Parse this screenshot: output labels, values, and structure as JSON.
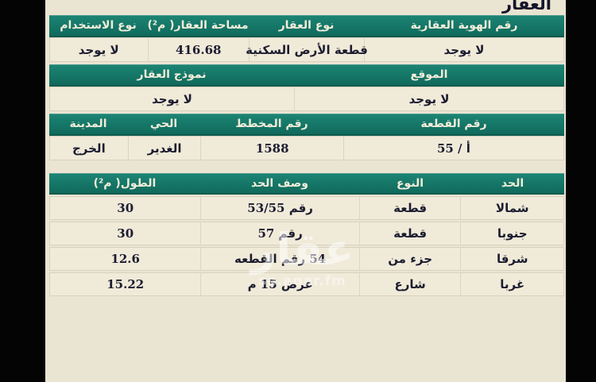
{
  "page_title": "العقار",
  "colors": {
    "accent_teal": "#157667",
    "background": "#eae4d2",
    "cell": "#f0ead9"
  },
  "watermark": {
    "logo": "عقار",
    "site": "sa.aqar.fm"
  },
  "property_table": {
    "headers": {
      "id": "رقم الهوية العقارية",
      "type": "نوع العقار",
      "area": "مساحة العقار( م²)",
      "usage": "نوع الاستخدام"
    },
    "values": {
      "id": "لا يوجد",
      "type": "قطعة الأرض السكنية",
      "area": "416.68",
      "usage": "لا يوجد"
    }
  },
  "location_table": {
    "headers": {
      "location": "الموقع",
      "model": "نموذج العقار"
    },
    "values": {
      "location": "لا يوجد",
      "model": "لا يوجد"
    }
  },
  "plot_table": {
    "headers": {
      "plot_no": "رقم القطعة",
      "plan_no": "رقم المخطط",
      "district": "الحي",
      "city": "المدينة"
    },
    "values": {
      "plot_no": "أ / 55",
      "plan_no": "1588",
      "district": "الغدير",
      "city": "الخرج"
    }
  },
  "boundaries_table": {
    "headers": {
      "boundary": "الحد",
      "type": "النوع",
      "description": "وصف الحد",
      "length": "الطول( م²)"
    },
    "rows": [
      {
        "boundary": "شمالا",
        "type": "قطعة",
        "description": "رقم 53/55",
        "length": "30"
      },
      {
        "boundary": "جنوبا",
        "type": "قطعة",
        "description": "رقم 57",
        "length": "30"
      },
      {
        "boundary": "شرقا",
        "type": "جزء من",
        "description": "54 رقم القطعه",
        "length": "12.6"
      },
      {
        "boundary": "غربا",
        "type": "شارع",
        "description": "عرض 15 م",
        "length": "15.22"
      }
    ]
  }
}
